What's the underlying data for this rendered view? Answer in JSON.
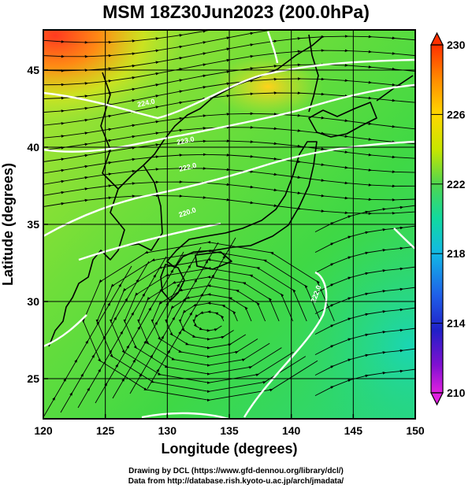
{
  "title": "MSM 18Z30Jun2023 (200.0hPa)",
  "x_axis": {
    "label": "Longitude (degrees)",
    "range": [
      120,
      150
    ],
    "ticks": [
      "120",
      "125",
      "130",
      "135",
      "140",
      "145",
      "150"
    ]
  },
  "y_axis": {
    "label": "Latitude  (degrees)",
    "range": [
      22.4,
      47.6
    ],
    "ticks": [
      "25",
      "30",
      "35",
      "40",
      "45"
    ]
  },
  "colorbar": {
    "min": 210,
    "max": 230,
    "labels": [
      "230",
      "226",
      "222",
      "218",
      "214",
      "210"
    ],
    "colors": [
      "#ff3000",
      "#ff8c00",
      "#ffd700",
      "#c8e600",
      "#4fd64f",
      "#11d9a0",
      "#12b8e6",
      "#1f5fe8",
      "#2020c8",
      "#8010d0",
      "#e020e0"
    ]
  },
  "contour_labels": [
    "224.0",
    "223.0",
    "222.0",
    "220.0",
    "222.0",
    "220.0"
  ],
  "map": {
    "background_colors": {
      "warm_corner": "#ff4a2a",
      "mid": "#c8e32a",
      "base": "#3fd83f",
      "cool_east": "#22d6a0"
    },
    "streamline_color": "#000000",
    "contour_color": "#ffffff",
    "coast_color": "#000000",
    "grid_color": "#000000"
  },
  "footer": {
    "line1": "Drawing by DCL (https://www.gfd-dennou.org/library/dcl/)",
    "line2": "Data from http://database.rish.kyoto-u.ac.jp/arch/jmadata/"
  }
}
